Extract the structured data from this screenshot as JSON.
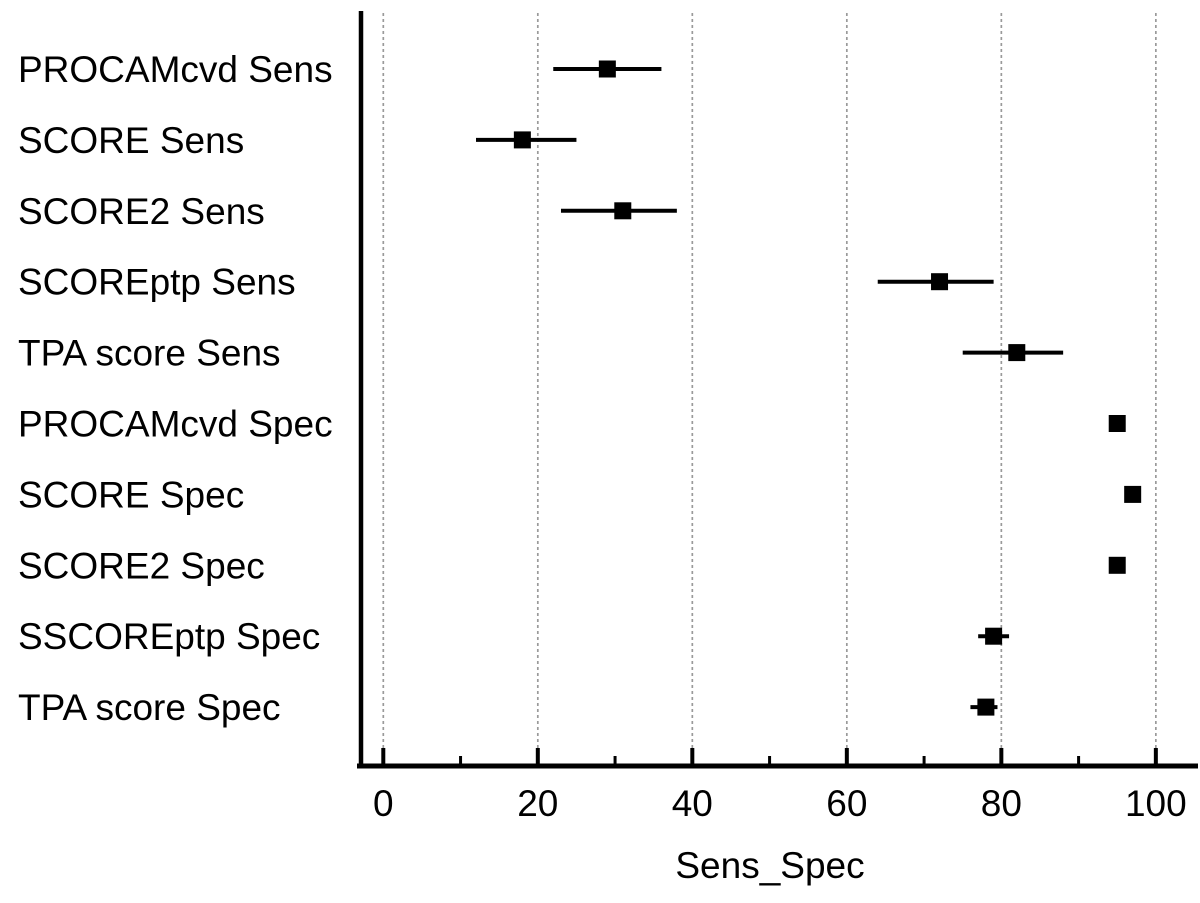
{
  "chart_data": {
    "type": "scatter",
    "subtype": "forest-plot-with-error-bars",
    "title": "",
    "xlabel": "Sens_Spec",
    "ylabel": "",
    "xlim": [
      -3.5,
      105.5
    ],
    "x_ticks": [
      0,
      20,
      40,
      60,
      80,
      100
    ],
    "x_tick_labels": [
      "0",
      "20",
      "40",
      "60",
      "80",
      "100"
    ],
    "x_minor_ticks": [
      10,
      30,
      50,
      70,
      90
    ],
    "grid": "vertical-dashed",
    "legend": "none",
    "marker": "filled-square",
    "colors": {
      "marker": "#000000",
      "axis": "#000000",
      "gridline": "#9a9a9a"
    },
    "points": [
      {
        "label": "PROCAMcvd Sens",
        "value": 29,
        "ci_low": 22,
        "ci_high": 36
      },
      {
        "label": "SCORE Sens",
        "value": 18,
        "ci_low": 12,
        "ci_high": 25
      },
      {
        "label": "SCORE2 Sens",
        "value": 31,
        "ci_low": 23,
        "ci_high": 38
      },
      {
        "label": "SCOREptp Sens",
        "value": 72,
        "ci_low": 64,
        "ci_high": 79
      },
      {
        "label": "TPA score Sens",
        "value": 82,
        "ci_low": 75,
        "ci_high": 88
      },
      {
        "label": "PROCAMcvd Spec",
        "value": 95,
        "ci_low": 95,
        "ci_high": 95
      },
      {
        "label": "SCORE Spec",
        "value": 97,
        "ci_low": 97,
        "ci_high": 97
      },
      {
        "label": "SCORE2 Spec",
        "value": 95,
        "ci_low": 95,
        "ci_high": 95
      },
      {
        "label": "SSCOREptp Spec",
        "value": 79,
        "ci_low": 77,
        "ci_high": 81
      },
      {
        "label": "TPA score Spec",
        "value": 78,
        "ci_low": 76,
        "ci_high": 79.5
      }
    ]
  }
}
